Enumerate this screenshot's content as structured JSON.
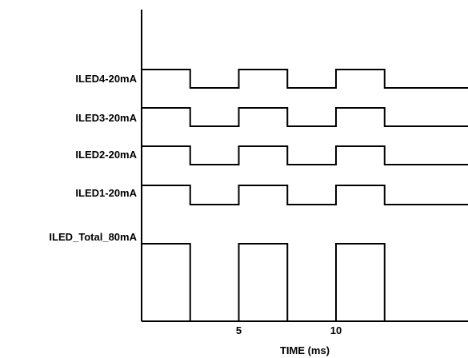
{
  "chart_data": {
    "type": "timing-diagram",
    "xlabel": "TIME (ms)",
    "x_ticks": [
      {
        "value": 5,
        "label": "5"
      },
      {
        "value": 10,
        "label": "10"
      }
    ],
    "signals": [
      {
        "name": "ILED4-20mA",
        "pulses": [
          [
            0,
            2.5
          ],
          [
            5,
            7.5
          ],
          [
            10,
            12.5
          ]
        ]
      },
      {
        "name": "ILED3-20mA",
        "pulses": [
          [
            0,
            2.5
          ],
          [
            5,
            7.5
          ],
          [
            10,
            12.5
          ]
        ]
      },
      {
        "name": "ILED2-20mA",
        "pulses": [
          [
            0,
            2.5
          ],
          [
            5,
            7.5
          ],
          [
            10,
            12.5
          ]
        ]
      },
      {
        "name": "ILED1-20mA",
        "pulses": [
          [
            0,
            2.5
          ],
          [
            5,
            7.5
          ],
          [
            10,
            12.5
          ]
        ]
      },
      {
        "name": "ILED_Total_80mA",
        "pulses": [
          [
            0,
            2.5
          ],
          [
            5,
            7.5
          ],
          [
            10,
            12.5
          ]
        ]
      }
    ],
    "line_color": "#000000"
  }
}
